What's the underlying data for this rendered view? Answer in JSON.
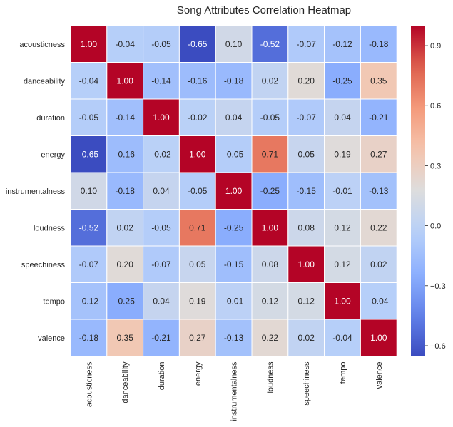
{
  "chart_data": {
    "type": "heatmap",
    "title": "Song Attributes Correlation Heatmap",
    "xlabel": "",
    "ylabel": "",
    "labels": [
      "acousticness",
      "danceability",
      "duration",
      "energy",
      "instrumentalness",
      "loudness",
      "speechiness",
      "tempo",
      "valence"
    ],
    "values": [
      [
        1.0,
        -0.04,
        -0.05,
        -0.65,
        0.1,
        -0.52,
        -0.07,
        -0.12,
        -0.18
      ],
      [
        -0.04,
        1.0,
        -0.14,
        -0.16,
        -0.18,
        0.02,
        0.2,
        -0.25,
        0.35
      ],
      [
        -0.05,
        -0.14,
        1.0,
        -0.02,
        0.04,
        -0.05,
        -0.07,
        0.04,
        -0.21
      ],
      [
        -0.65,
        -0.16,
        -0.02,
        1.0,
        -0.05,
        0.71,
        0.05,
        0.19,
        0.27
      ],
      [
        0.1,
        -0.18,
        0.04,
        -0.05,
        1.0,
        -0.25,
        -0.15,
        -0.01,
        -0.13
      ],
      [
        -0.52,
        0.02,
        -0.05,
        0.71,
        -0.25,
        1.0,
        0.08,
        0.12,
        0.22
      ],
      [
        -0.07,
        0.2,
        -0.07,
        0.05,
        -0.15,
        0.08,
        1.0,
        0.12,
        0.02
      ],
      [
        -0.12,
        -0.25,
        0.04,
        0.19,
        -0.01,
        0.12,
        0.12,
        1.0,
        -0.04
      ],
      [
        -0.18,
        0.35,
        -0.21,
        0.27,
        -0.13,
        0.22,
        0.02,
        -0.04,
        1.0
      ]
    ],
    "colormap": "coolwarm",
    "vmin": -0.65,
    "vmax": 1.0,
    "colorbar_ticks": [
      "0.9",
      "0.6",
      "0.3",
      "0.0",
      "−0.3",
      "−0.6"
    ],
    "colorbar_tick_values": [
      0.9,
      0.6,
      0.3,
      0.0,
      -0.3,
      -0.6
    ],
    "value_format": "2 decimals",
    "grid": false,
    "colorbar_position": "right"
  }
}
